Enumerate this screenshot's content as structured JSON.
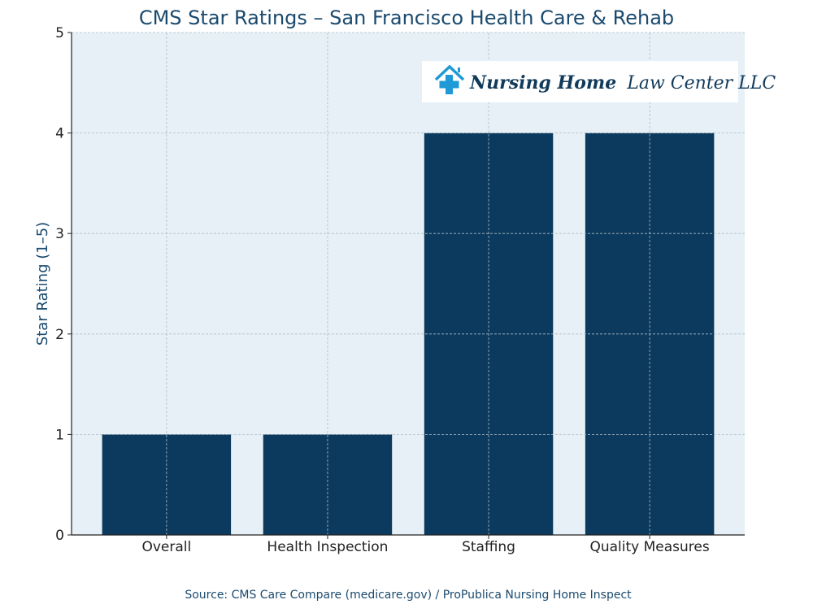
{
  "chart_data": {
    "type": "bar",
    "title": "CMS Star Ratings – San Francisco Health Care & Rehab",
    "xlabel": "",
    "ylabel": "Star Rating (1–5)",
    "categories": [
      "Overall",
      "Health Inspection",
      "Staffing",
      "Quality Measures"
    ],
    "values": [
      1,
      1,
      4,
      4
    ],
    "ylim": [
      0,
      5
    ],
    "yticks": [
      0,
      1,
      2,
      3,
      4,
      5
    ],
    "grid": true,
    "source": "Source: CMS Care Compare (medicare.gov) / ProPublica Nursing Home Inspect"
  },
  "logo": {
    "text_bold": "Nursing Home",
    "text_regular": "Law Center LLC"
  },
  "colors": {
    "bar": "#0b3a5e",
    "plot_bg": "#e6f0f6",
    "title": "#1a4a6e",
    "logo_icon": "#1e9ad6",
    "logo_text": "#123a5a"
  }
}
